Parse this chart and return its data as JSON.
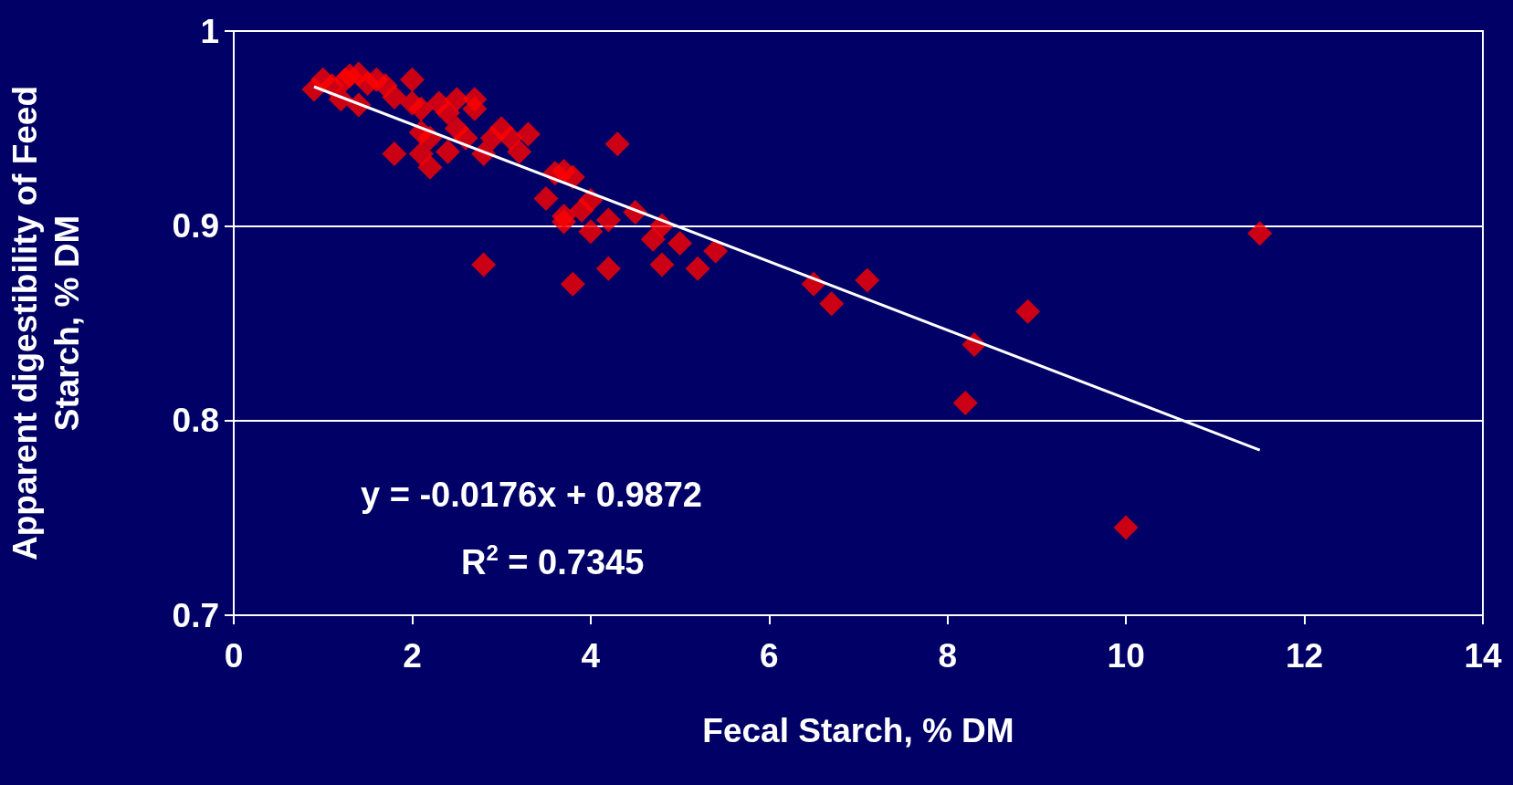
{
  "chart_data": {
    "type": "scatter",
    "xlabel": "Fecal Starch, % DM",
    "ylabel": "Apparent digestibility of Feed Starch, % DM",
    "xlim": [
      0,
      14
    ],
    "xticks": [
      0,
      2,
      4,
      6,
      8,
      10,
      12,
      14
    ],
    "ylim": [
      0.7,
      1
    ],
    "yticks": [
      0.7,
      0.8,
      0.9,
      1
    ],
    "grid": "y",
    "marker": "diamond",
    "series": [
      {
        "color": "#ff0000",
        "x": [
          0.9,
          1.0,
          1.1,
          1.2,
          1.25,
          1.3,
          1.4,
          1.4,
          1.5,
          1.6,
          1.7,
          1.8,
          1.8,
          2.0,
          2.0,
          2.1,
          2.1,
          2.1,
          2.2,
          2.2,
          2.3,
          2.4,
          2.4,
          2.5,
          2.5,
          2.6,
          2.7,
          2.7,
          2.8,
          2.8,
          2.9,
          3.0,
          3.1,
          3.2,
          3.3,
          3.5,
          3.6,
          3.7,
          3.7,
          3.7,
          3.8,
          3.8,
          3.9,
          4.0,
          4.0,
          4.2,
          4.2,
          4.3,
          4.5,
          4.7,
          4.8,
          4.8,
          5.0,
          5.2,
          5.4,
          6.5,
          6.7,
          7.1,
          8.2,
          8.3,
          8.9,
          10.0,
          11.5
        ],
        "values": [
          0.97,
          0.975,
          0.972,
          0.965,
          0.975,
          0.977,
          0.978,
          0.962,
          0.973,
          0.975,
          0.972,
          0.966,
          0.937,
          0.975,
          0.963,
          0.96,
          0.948,
          0.937,
          0.93,
          0.945,
          0.963,
          0.938,
          0.958,
          0.965,
          0.95,
          0.945,
          0.965,
          0.96,
          0.937,
          0.88,
          0.945,
          0.95,
          0.945,
          0.938,
          0.947,
          0.914,
          0.927,
          0.928,
          0.905,
          0.902,
          0.925,
          0.87,
          0.908,
          0.913,
          0.897,
          0.903,
          0.878,
          0.942,
          0.907,
          0.893,
          0.9,
          0.88,
          0.891,
          0.878,
          0.887,
          0.87,
          0.86,
          0.872,
          0.809,
          0.839,
          0.856,
          0.745,
          0.896
        ]
      },
      {
        "type": "line",
        "color": "#ffffff",
        "marker": "none",
        "x": [
          0.9,
          11.5
        ],
        "values": [
          0.9714,
          0.7848
        ]
      }
    ],
    "annotations": [
      "y = -0.0176x + 0.9872",
      "R$^{2}$ = 0.7345"
    ]
  }
}
